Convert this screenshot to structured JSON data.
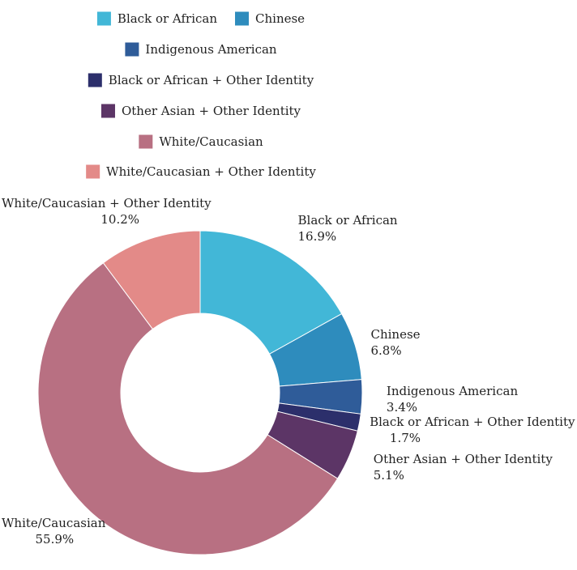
{
  "chart_data": {
    "type": "pie",
    "style": "donut",
    "title": "",
    "legend_position": "top",
    "series": [
      {
        "name": "Black or African",
        "value": 16.9,
        "label": "16.9%",
        "color": "#42B7D7"
      },
      {
        "name": "Chinese",
        "value": 6.8,
        "label": "6.8%",
        "color": "#2E8CBD"
      },
      {
        "name": "Indigenous American",
        "value": 3.4,
        "label": "3.4%",
        "color": "#2F5C99"
      },
      {
        "name": "Black or African + Other Identity",
        "value": 1.7,
        "label": "1.7%",
        "color": "#2C2F6B"
      },
      {
        "name": "Other Asian + Other Identity",
        "value": 5.1,
        "label": "5.1%",
        "color": "#5C3566"
      },
      {
        "name": "White/Caucasian",
        "value": 55.9,
        "label": "55.9%",
        "color": "#B87082"
      },
      {
        "name": "White/Caucasian + Other Identity",
        "value": 10.2,
        "label": "10.2%",
        "color": "#E38A88"
      }
    ]
  }
}
